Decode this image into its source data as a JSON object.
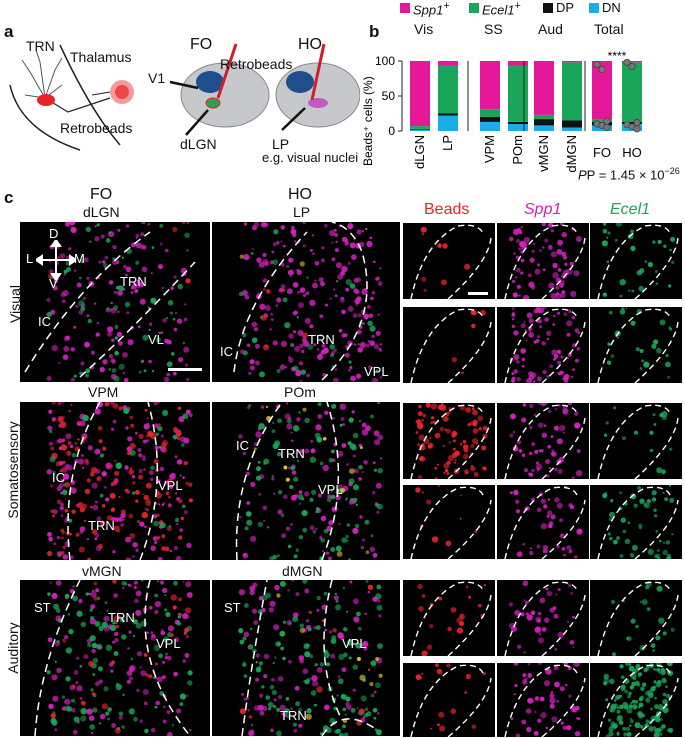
{
  "panel_a": {
    "letter": "a",
    "labels": {
      "trn": "TRN",
      "thalamus": "Thalamus",
      "retrobeads_left": "Retrobeads",
      "fo": "FO",
      "ho": "HO",
      "v1": "V1",
      "retrobeads_right": "Retrobeads",
      "dlgn": "dLGN",
      "lp": "LP",
      "caption": "e.g. visual nuclei"
    }
  },
  "panel_b": {
    "letter": "b",
    "ylabel": "Beads⁺ cells (%)",
    "legend": [
      {
        "name": "Spp1",
        "sup": "+",
        "italic": true,
        "color": "#e6189a"
      },
      {
        "name": "Ecel1",
        "sup": "+",
        "italic": true,
        "color": "#1aa65a"
      },
      {
        "name": "DP",
        "sup": "",
        "italic": false,
        "color": "#111111"
      },
      {
        "name": "DN",
        "sup": "",
        "italic": false,
        "color": "#1aaee8"
      }
    ],
    "groups": [
      "Vis",
      "SS",
      "Aud",
      "Total"
    ],
    "yticks": [
      "0",
      "50",
      "100"
    ],
    "sig": "****",
    "pvalue": "P = 1.45 × 10",
    "pexp": "−26",
    "colors": {
      "spp1": "#e6189a",
      "ecel1": "#1aa65a",
      "dp": "#111111",
      "dn": "#1aaee8"
    }
  },
  "chart_data": {
    "type": "bar",
    "stacked": true,
    "categories": [
      "dLGN",
      "LP",
      "VPM",
      "POm",
      "vMGN",
      "dMGN",
      "FO",
      "HO"
    ],
    "groups": [
      {
        "name": "Vis",
        "categories": [
          "dLGN",
          "LP"
        ]
      },
      {
        "name": "SS",
        "categories": [
          "VPM",
          "POm"
        ]
      },
      {
        "name": "Aud",
        "categories": [
          "vMGN",
          "dMGN"
        ]
      },
      {
        "name": "Total",
        "categories": [
          "FO",
          "HO"
        ]
      }
    ],
    "series": [
      {
        "name": "DN",
        "values": [
          2,
          22,
          13,
          10,
          8,
          5,
          8,
          10
        ]
      },
      {
        "name": "DP",
        "values": [
          1,
          3,
          7,
          3,
          9,
          10,
          5,
          3
        ]
      },
      {
        "name": "Ecel1+",
        "values": [
          4,
          68,
          11,
          80,
          6,
          83,
          3,
          85
        ]
      },
      {
        "name": "Spp1+",
        "values": [
          93,
          7,
          69,
          7,
          77,
          2,
          84,
          2
        ]
      }
    ],
    "ylabel": "Beads⁺ cells (%)",
    "ylim": [
      0,
      100
    ]
  },
  "panel_c": {
    "letter": "c",
    "col_fo": "FO",
    "col_ho": "HO",
    "col_beads": "Beads",
    "col_spp1": "Spp1",
    "col_ecel1": "Ecel1",
    "rows": [
      {
        "name": "Visual",
        "left_title": "dLGN",
        "right_title": "LP",
        "left_labels": [
          "TRN",
          "IC",
          "VL"
        ],
        "right_labels": [
          "TRN",
          "IC",
          "VPL"
        ]
      },
      {
        "name": "Somatosensory",
        "left_title": "VPM",
        "right_title": "POm",
        "left_labels": [
          "IC",
          "TRN",
          "VPL"
        ],
        "right_labels": [
          "IC",
          "TRN",
          "VPL"
        ]
      },
      {
        "name": "Auditory",
        "left_title": "vMGN",
        "right_title": "dMGN",
        "left_labels": [
          "ST",
          "TRN",
          "VPL"
        ],
        "right_labels": [
          "ST",
          "TRN",
          "VPL"
        ]
      }
    ],
    "compass": {
      "d": "D",
      "v": "V",
      "l": "L",
      "m": "M"
    },
    "colors": {
      "beads": "#e8232a",
      "spp1": "#d41fbf",
      "ecel1": "#1aa65a"
    }
  }
}
